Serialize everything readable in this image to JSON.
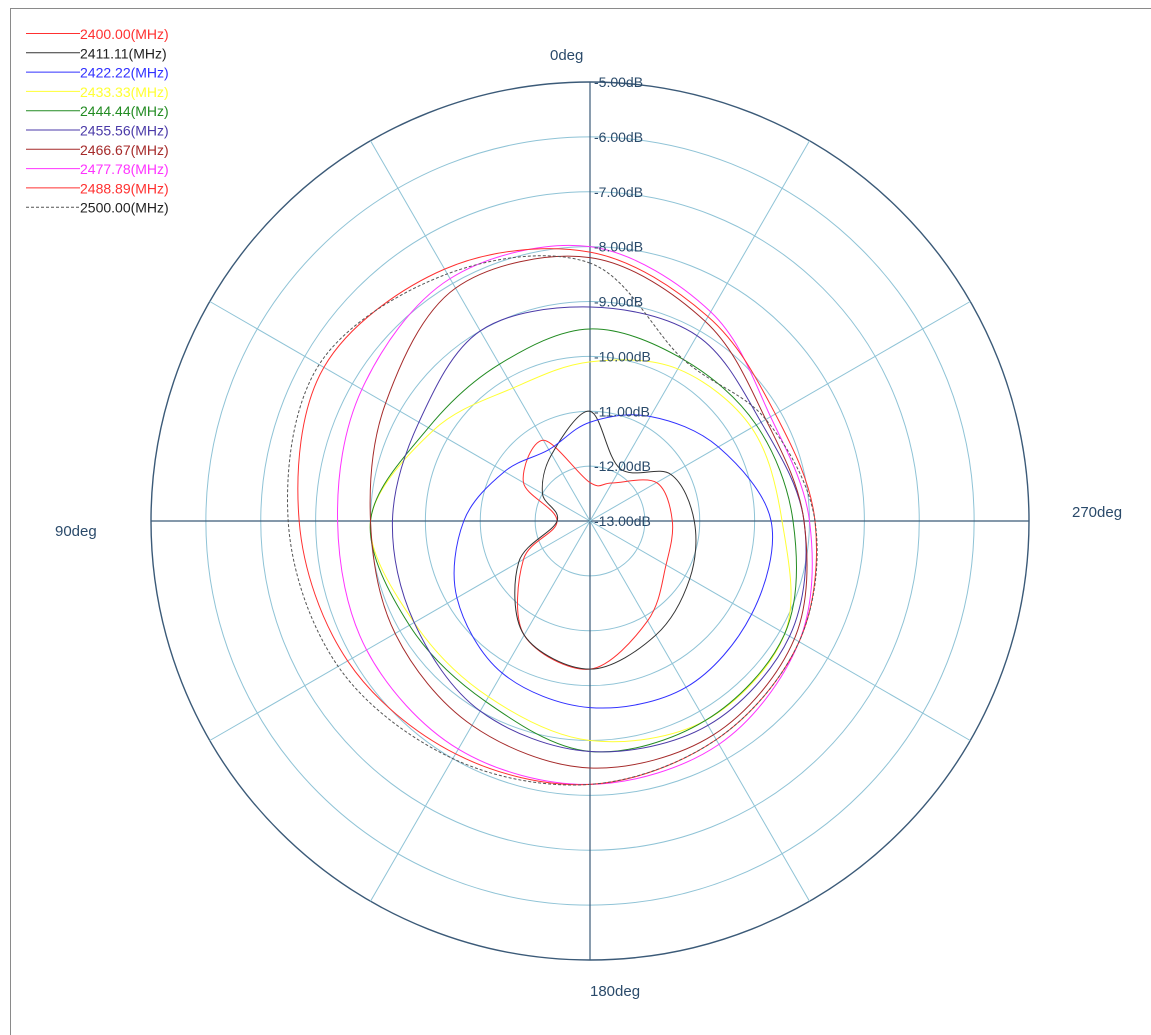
{
  "chart_data": {
    "type": "polar",
    "title": "",
    "radial_axis": {
      "unit": "dB",
      "min": -13,
      "max": -5,
      "tick_labels": [
        "-5.00dB",
        "-6.00dB",
        "-7.00dB",
        "-8.00dB",
        "-9.00dB",
        "-10.00dB",
        "-11.00dB",
        "-12.00dB",
        "-13.00dB"
      ],
      "ticks": [
        -5,
        -6,
        -7,
        -8,
        -9,
        -10,
        -11,
        -12,
        -13
      ]
    },
    "angular_axis": {
      "labels": [
        {
          "deg": 0,
          "text": "0deg"
        },
        {
          "deg": 90,
          "text": "90deg"
        },
        {
          "deg": 180,
          "text": "180deg"
        },
        {
          "deg": 270,
          "text": "270deg"
        }
      ],
      "direction": "counterclockwise",
      "zero_at": "top",
      "spoke_step_deg": 30
    },
    "grid": true,
    "legend_position": "top-left",
    "angles_deg": [
      0,
      30,
      60,
      90,
      120,
      150,
      180,
      210,
      240,
      270,
      300,
      330
    ],
    "series": [
      {
        "name": "2400.00(MHz)",
        "color": "#ff3030",
        "dashed": false,
        "values": [
          -12.3,
          -11.3,
          -11.6,
          -12.4,
          -11.6,
          -10.6,
          -10.3,
          -10.9,
          -11.4,
          -11.5,
          -11.6,
          -12.2
        ]
      },
      {
        "name": "2411.11(MHz)",
        "color": "#333333",
        "dashed": false,
        "values": [
          -11.0,
          -11.6,
          -12.0,
          -12.4,
          -11.5,
          -10.6,
          -10.3,
          -10.6,
          -10.9,
          -11.1,
          -11.3,
          -11.9
        ]
      },
      {
        "name": "2422.22(MHz)",
        "color": "#3030ff",
        "dashed": false,
        "values": [
          -11.2,
          -11.5,
          -11.2,
          -10.7,
          -10.2,
          -9.8,
          -9.6,
          -9.5,
          -9.6,
          -9.7,
          -10.3,
          -10.8
        ]
      },
      {
        "name": "2433.33(MHz)",
        "color": "#ffff33",
        "dashed": false,
        "values": [
          -10.1,
          -10.2,
          -9.7,
          -9.0,
          -9.3,
          -9.3,
          -9.0,
          -8.8,
          -8.9,
          -9.5,
          -9.6,
          -9.8
        ]
      },
      {
        "name": "2444.44(MHz)",
        "color": "#228b22",
        "dashed": false,
        "values": [
          -9.5,
          -9.7,
          -9.6,
          -9.0,
          -9.2,
          -9.2,
          -8.8,
          -8.8,
          -8.9,
          -9.3,
          -9.5,
          -9.6
        ]
      },
      {
        "name": "2455.56(MHz)",
        "color": "#4b3aa8",
        "dashed": false,
        "values": [
          -9.1,
          -9.0,
          -9.4,
          -9.4,
          -9.3,
          -9.0,
          -8.8,
          -8.7,
          -8.8,
          -9.1,
          -9.4,
          -9.1
        ]
      },
      {
        "name": "2466.67(MHz)",
        "color": "#a52a2a",
        "dashed": false,
        "values": [
          -8.2,
          -8.1,
          -8.7,
          -9.0,
          -8.9,
          -8.7,
          -8.5,
          -8.5,
          -8.7,
          -9.1,
          -9.3,
          -8.8
        ]
      },
      {
        "name": "2477.78(MHz)",
        "color": "#ff33ff",
        "dashed": false,
        "values": [
          -8.0,
          -7.9,
          -8.2,
          -8.4,
          -8.3,
          -8.2,
          -8.2,
          -8.3,
          -8.6,
          -9.0,
          -9.2,
          -8.6
        ]
      },
      {
        "name": "2488.89(MHz)",
        "color": "#ff3030",
        "dashed": false,
        "values": [
          -8.1,
          -7.7,
          -7.4,
          -7.7,
          -7.9,
          -8.1,
          -8.2,
          -8.4,
          -8.6,
          -8.9,
          -9.1,
          -8.7
        ]
      },
      {
        "name": "2500.00(MHz)",
        "color": "#555555",
        "dashed": true,
        "values": [
          -8.3,
          -7.8,
          -7.3,
          -7.5,
          -7.7,
          -8.0,
          -8.2,
          -8.4,
          -8.6,
          -8.9,
          -9.3,
          -9.6
        ]
      }
    ]
  }
}
